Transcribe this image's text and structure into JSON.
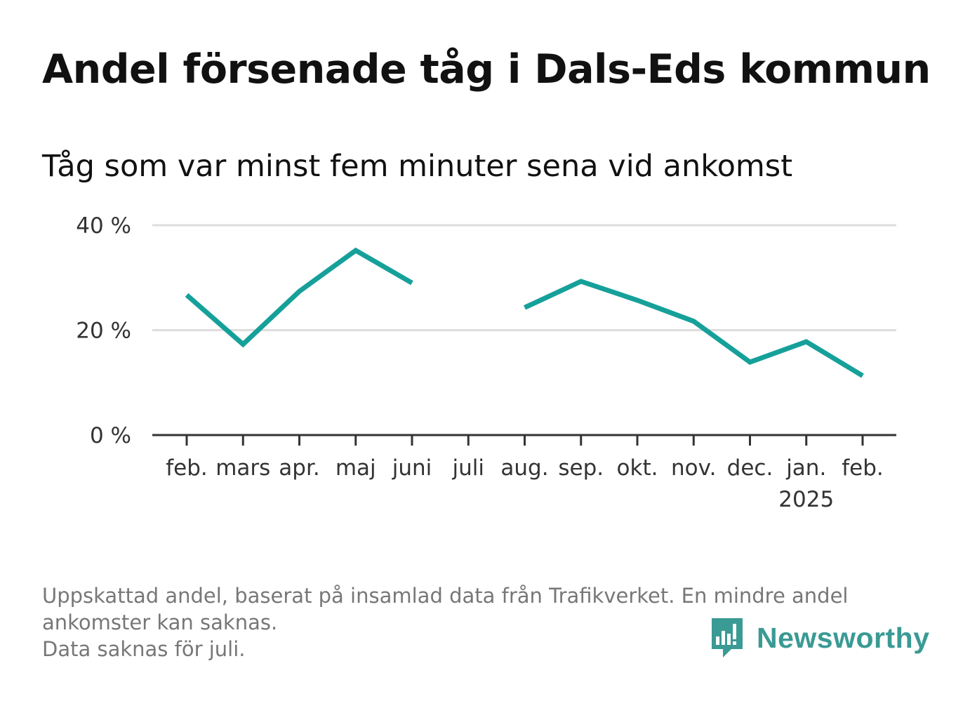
{
  "header": {
    "title": "Andel försenade tåg i Dals-Eds kommun",
    "subtitle": "Tåg som var minst fem minuter sena vid ankomst"
  },
  "colors": {
    "line": "#16a09a",
    "grid": "#dddddd",
    "axis": "#333333",
    "brand": "#3a9a94"
  },
  "chart_data": {
    "type": "line",
    "categories": [
      "feb.",
      "mars",
      "apr.",
      "maj",
      "juni",
      "juli",
      "aug.",
      "sep.",
      "okt.",
      "nov.",
      "dec.",
      "jan.",
      "feb."
    ],
    "category_sublabels": [
      "",
      "",
      "",
      "",
      "",
      "",
      "",
      "",
      "",
      "",
      "",
      "2025",
      ""
    ],
    "series": [
      {
        "values": [
          26.7,
          17.3,
          27.4,
          35.2,
          29.0,
          null,
          24.3,
          29.3,
          25.7,
          21.7,
          13.9,
          17.8,
          11.3
        ]
      }
    ],
    "yticks": [
      0,
      20,
      40
    ],
    "ytick_labels": [
      "0 %",
      "20 %",
      "40 %"
    ],
    "ylim": [
      0,
      40
    ],
    "xlabel": "",
    "ylabel": "",
    "grid": true,
    "legend": "none"
  },
  "footer": {
    "note_line1": "Uppskattad andel, baserat på insamlad data från Trafikverket. En mindre andel",
    "note_line2": "ankomster kan saknas.",
    "note_line3": "Data saknas för juli.",
    "brand_name": "Newsworthy"
  }
}
